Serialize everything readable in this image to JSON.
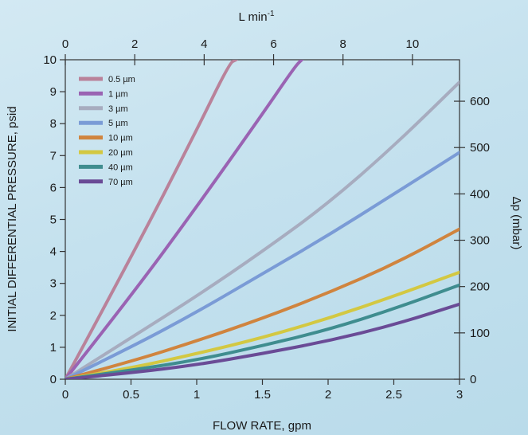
{
  "chart_data": {
    "type": "line",
    "title": "",
    "xlabel": "FLOW RATE, gpm",
    "ylabel": "INITIAL DIFFERENTIAL PRESSURE, psid",
    "x2label": "L min",
    "x2label_sup": "-1",
    "y2label": "Δp (mbar)",
    "xlim": [
      0,
      3
    ],
    "ylim": [
      0,
      10
    ],
    "x2lim": [
      0,
      11.356
    ],
    "y2lim": [
      0,
      689.5
    ],
    "grid": false,
    "legend_position": "top-left",
    "x_ticks": [
      "0",
      "0.5",
      "1",
      "1.5",
      "2",
      "2.5",
      "3"
    ],
    "y_ticks": [
      "0",
      "1",
      "2",
      "3",
      "4",
      "5",
      "6",
      "7",
      "8",
      "9",
      "10"
    ],
    "x2_ticks": [
      "0",
      "2",
      "4",
      "6",
      "8",
      "10"
    ],
    "y2_ticks": [
      "0",
      "100",
      "200",
      "300",
      "400",
      "500",
      "600"
    ],
    "series": [
      {
        "name": "0.5 µm",
        "color": "#b9829a",
        "x": [
          0,
          0.5,
          1,
          1.25,
          1.3
        ],
        "y": [
          0,
          3.8,
          7.8,
          9.9,
          10
        ]
      },
      {
        "name": "1 µm",
        "color": "#9a63b3",
        "x": [
          0,
          0.5,
          1,
          1.5,
          1.75,
          1.8
        ],
        "y": [
          0,
          2.6,
          5.4,
          8.3,
          9.8,
          10
        ]
      },
      {
        "name": "3 µm",
        "color": "#a7acbf",
        "x": [
          0,
          0.5,
          1,
          1.5,
          2,
          2.5,
          3
        ],
        "y": [
          0,
          1.3,
          2.6,
          4.0,
          5.5,
          7.3,
          9.3
        ]
      },
      {
        "name": "5 µm",
        "color": "#7a9bd6",
        "x": [
          0,
          0.5,
          1,
          1.5,
          2,
          2.5,
          3
        ],
        "y": [
          0,
          1.0,
          2.1,
          3.3,
          4.5,
          5.8,
          7.1
        ]
      },
      {
        "name": "10 µm",
        "color": "#d0843e",
        "x": [
          0,
          0.5,
          1,
          1.5,
          2,
          2.5,
          3
        ],
        "y": [
          0,
          0.55,
          1.2,
          1.9,
          2.7,
          3.6,
          4.7
        ]
      },
      {
        "name": "20 µm",
        "color": "#d3c842",
        "x": [
          0,
          0.5,
          1,
          1.5,
          2,
          2.5,
          3
        ],
        "y": [
          0,
          0.35,
          0.8,
          1.3,
          1.9,
          2.6,
          3.35
        ]
      },
      {
        "name": "40 µm",
        "color": "#3f8d8f",
        "x": [
          0,
          0.5,
          1,
          1.5,
          2,
          2.5,
          3
        ],
        "y": [
          0,
          0.28,
          0.6,
          1.05,
          1.55,
          2.2,
          2.95
        ]
      },
      {
        "name": "70 µm",
        "color": "#6a4b96",
        "x": [
          0,
          0.5,
          1,
          1.5,
          2,
          2.5,
          3
        ],
        "y": [
          0,
          0.2,
          0.45,
          0.8,
          1.2,
          1.7,
          2.35
        ]
      }
    ]
  }
}
